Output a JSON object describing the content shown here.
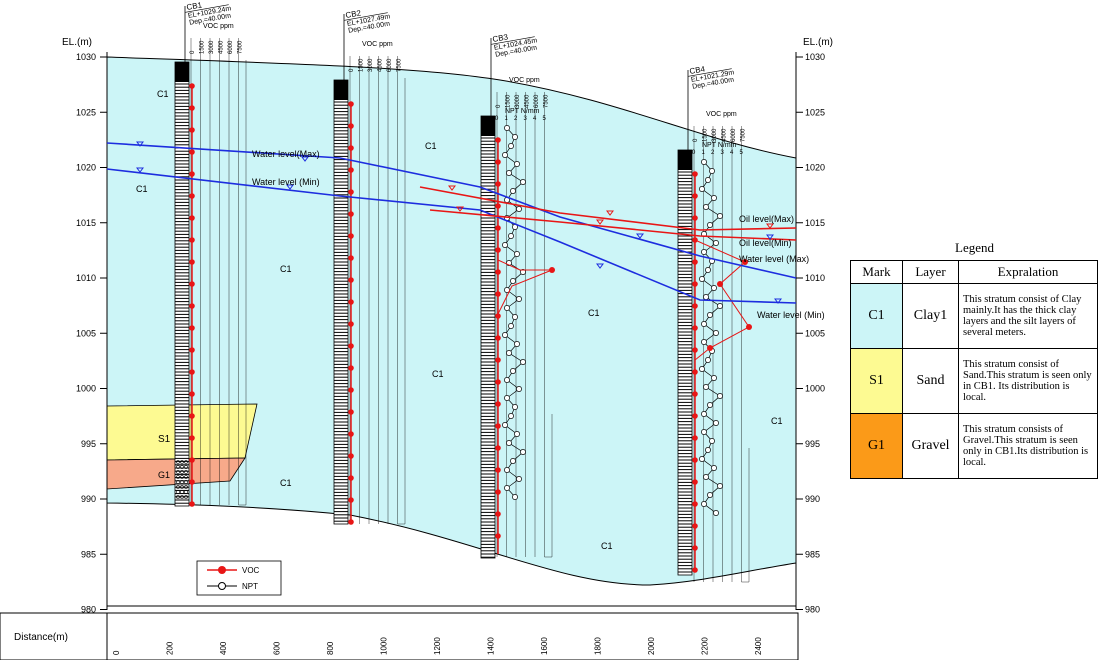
{
  "elevation_axis": {
    "label_left": "EL.(m)",
    "label_right": "EL.(m)",
    "ticks": [
      "1030",
      "1025",
      "1020",
      "1015",
      "1010",
      "1005",
      "1000",
      "995",
      "990",
      "985",
      "980"
    ]
  },
  "distance_axis": {
    "label": "Distance(m)",
    "ticks": [
      "0",
      "200",
      "400",
      "600",
      "800",
      "1000",
      "1200",
      "1400",
      "1600",
      "1800",
      "2000",
      "2200",
      "2400"
    ]
  },
  "boreholes": [
    {
      "id": "CB1",
      "el": "EL+1029.24m",
      "dep": "Dep.=40.00m"
    },
    {
      "id": "CB2",
      "el": "EL+1027.49m",
      "dep": "Dep.=40.00m"
    },
    {
      "id": "CB3",
      "el": "EL+1024.45m",
      "dep": "Dep.=40.00m"
    },
    {
      "id": "CB4",
      "el": "EL+1021.29m",
      "dep": "Dep.=40.00m"
    }
  ],
  "voc_scale": {
    "title": "VOC ppm",
    "ticks": [
      "0",
      "1500",
      "3000",
      "4500",
      "6000",
      "7500"
    ]
  },
  "npt_scale": {
    "title": "NPT N/mm",
    "ticks": [
      "0",
      "1",
      "2",
      "3",
      "4",
      "5"
    ]
  },
  "line_labels": {
    "water_max": "Water level(Max)",
    "water_min": "Water level (Min)",
    "oil_max": "Oil level(Max)",
    "oil_min": "Oil level(Min)",
    "water_max_right": "Water level (Max)",
    "water_min_right": "Water level (Min)"
  },
  "strata_labels": {
    "c1": "C1",
    "s1": "S1",
    "g1": "G1"
  },
  "plot_legend": {
    "voc": "VOC",
    "npt": "NPT"
  },
  "colors": {
    "clay": "#ccf5f7",
    "sand": "#fdfa92",
    "gravel": "#f7a98a",
    "gravel_legend": "#fb9a18",
    "water": "#1d2ddf",
    "oil": "#e81616",
    "voc": "#e81616"
  },
  "legend": {
    "title": "Legend",
    "headers": [
      "Mark",
      "Layer",
      "Expralation"
    ],
    "rows": [
      {
        "mark": "C1",
        "layer": "Clay1",
        "desc": "This stratum consist of Clay mainly.It has the thick clay layers and the silt layers of several meters."
      },
      {
        "mark": "S1",
        "layer": "Sand",
        "desc": "This stratum consist of Sand.This stratum is seen only in CB1. Its distribution is local."
      },
      {
        "mark": "G1",
        "layer": "Gravel",
        "desc": "This stratum consists of Gravel.This stratum is seen   only in CB1.Its distribution is local."
      }
    ]
  }
}
